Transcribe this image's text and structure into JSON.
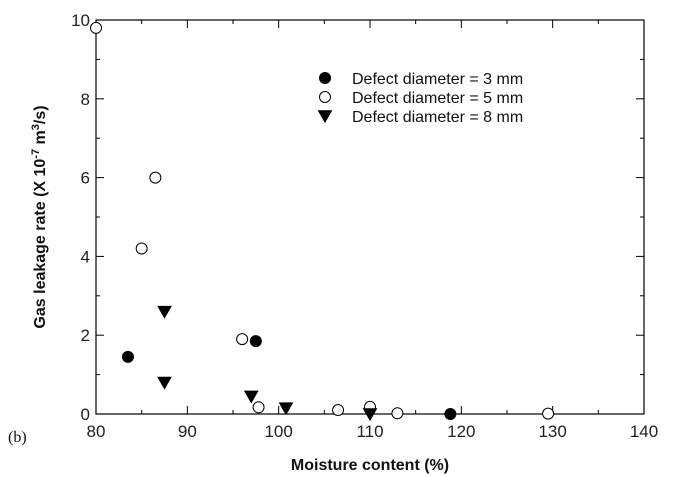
{
  "panel_label": "(b)",
  "chart_data": {
    "type": "scatter",
    "xlabel": "Moisture content (%)",
    "ylabel": "Gas leakage rate (X 10",
    "ylabel_exp": "-7",
    "ylabel_mid": " m",
    "ylabel_exp2": "3",
    "ylabel_end": "/s)",
    "xlim": [
      80,
      140
    ],
    "ylim": [
      0,
      10
    ],
    "xticks": [
      80,
      90,
      100,
      110,
      120,
      130,
      140
    ],
    "yticks": [
      0,
      2,
      4,
      6,
      8,
      10
    ],
    "grid": false,
    "legend_position": "top-right",
    "series": [
      {
        "name": "Defect diameter = 3 mm",
        "marker": "filled-circle",
        "color": "#000000",
        "points": [
          [
            83.5,
            1.45
          ],
          [
            97.5,
            1.85
          ],
          [
            118.8,
            0.0
          ]
        ]
      },
      {
        "name": "Defect diameter = 5 mm",
        "marker": "open-circle",
        "color": "#000000",
        "points": [
          [
            80.0,
            9.8
          ],
          [
            85.0,
            4.2
          ],
          [
            86.5,
            6.0
          ],
          [
            96.0,
            1.9
          ],
          [
            97.8,
            0.17
          ],
          [
            106.5,
            0.1
          ],
          [
            110.0,
            0.18
          ],
          [
            113.0,
            0.02
          ],
          [
            129.5,
            0.01
          ]
        ]
      },
      {
        "name": "Defect diameter = 8 mm",
        "marker": "filled-triangle-down",
        "color": "#000000",
        "points": [
          [
            87.5,
            2.6
          ],
          [
            87.5,
            0.8
          ],
          [
            97.0,
            0.45
          ],
          [
            100.8,
            0.15
          ],
          [
            110.0,
            0.0
          ]
        ]
      }
    ]
  }
}
